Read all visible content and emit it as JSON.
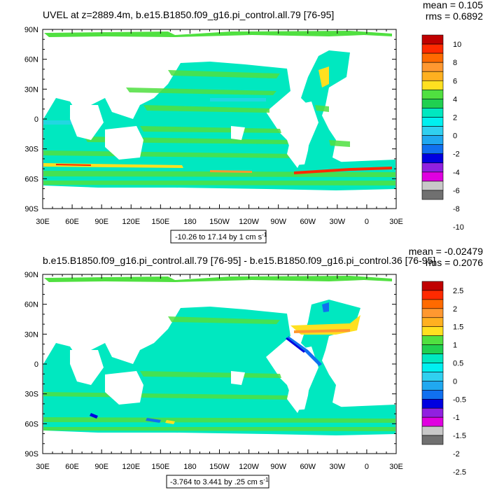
{
  "panels": [
    {
      "title": "UVEL at z=2889.4m, b.e15.B1850.f09_g16.pi_control.all.79 [76-95]",
      "stats": {
        "mean": "mean = 0.105",
        "rms": "rms = 0.6892"
      },
      "lat_labels": [
        "90N",
        "60N",
        "30N",
        "0",
        "30S",
        "60S",
        "90S"
      ],
      "lon_labels": [
        "30E",
        "60E",
        "90E",
        "120E",
        "150E",
        "180",
        "150W",
        "120W",
        "90W",
        "60W",
        "30W",
        "0",
        "30E"
      ],
      "info": {
        "text": "-10.26 to 17.14 by 1 cm s",
        "sup": "-1"
      },
      "colorbar": {
        "labels": [
          "10",
          "8",
          "6",
          "4",
          "2",
          "0",
          "-2",
          "-4",
          "-6",
          "-8",
          "-10"
        ],
        "colors": [
          "#c00000",
          "#ff2a00",
          "#ff6a00",
          "#ff9830",
          "#ffb020",
          "#ffe020",
          "#50e040",
          "#20d050",
          "#00e8c0",
          "#00f0f0",
          "#30d0f0",
          "#20a8f0",
          "#1070f0",
          "#0000e0",
          "#9020e0",
          "#e000e0",
          "#c8c8c8",
          "#707070"
        ]
      }
    },
    {
      "title": "b.e15.B1850.f09_g16.pi_control.all.79 [76-95] - b.e15.B1850.f09_g16.pi_control.36 [76-95]",
      "stats": {
        "mean": "mean = -0.02479",
        "rms": "rms = 0.2076"
      },
      "lat_labels": [
        "90N",
        "60N",
        "30N",
        "0",
        "30S",
        "60S",
        "90S"
      ],
      "lon_labels": [
        "30E",
        "60E",
        "90E",
        "120E",
        "150E",
        "180",
        "150W",
        "120W",
        "90W",
        "60W",
        "30W",
        "0",
        "30E"
      ],
      "info": {
        "text": "-3.764 to 3.441 by .25 cm s",
        "sup": "-1"
      },
      "colorbar": {
        "labels": [
          "2.5",
          "2",
          "1.5",
          "1",
          "0.5",
          "0",
          "-0.5",
          "-1",
          "-1.5",
          "-2",
          "-2.5"
        ],
        "colors": [
          "#c00000",
          "#ff2a00",
          "#ff6a00",
          "#ff9830",
          "#ffb020",
          "#ffe020",
          "#50e040",
          "#20d050",
          "#00e8c0",
          "#00f0f0",
          "#30d0f0",
          "#20a8f0",
          "#1070f0",
          "#0000e0",
          "#9020e0",
          "#e000e0",
          "#c8c8c8",
          "#707070"
        ]
      }
    }
  ],
  "map_colors": {
    "ocean": "#00e8c0",
    "band_green": "#50e040",
    "band_cyan": "#30d0f0",
    "warm_red": "#ff2a00",
    "warm_yellow": "#ffe020",
    "warm_orange": "#ff9830",
    "blue": "#1070f0",
    "dark_blue": "#0000e0"
  }
}
